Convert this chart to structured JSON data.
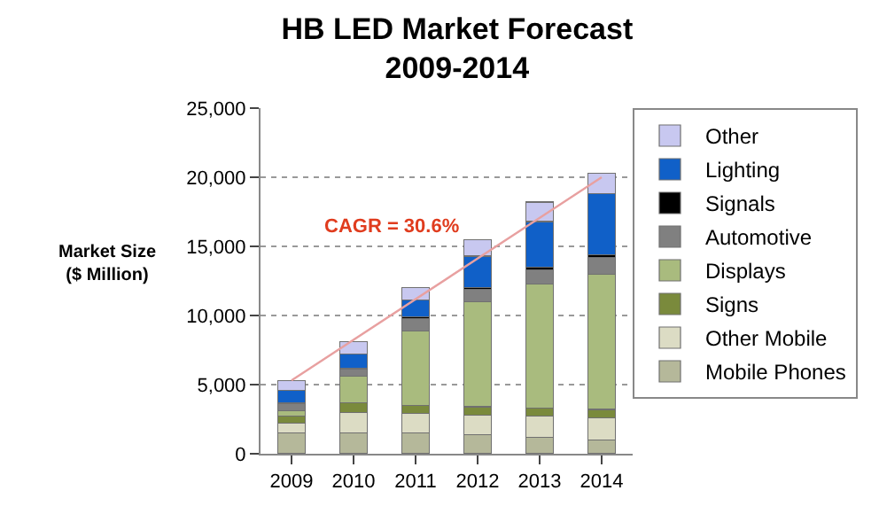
{
  "chart_data": {
    "type": "bar",
    "stacked": true,
    "title": "HB LED Market Forecast\n2009-2014",
    "ylabel": "Market Size\n($ Million)",
    "categories": [
      "2009",
      "2010",
      "2011",
      "2012",
      "2013",
      "2014"
    ],
    "series": [
      {
        "name": "Mobile Phones",
        "color": "#b5b89a",
        "values": [
          1500,
          1500,
          1500,
          1400,
          1200,
          1000
        ]
      },
      {
        "name": "Other Mobile",
        "color": "#dcdcc4",
        "values": [
          700,
          1500,
          1400,
          1400,
          1500,
          1600
        ]
      },
      {
        "name": "Signs",
        "color": "#7a8a3c",
        "values": [
          500,
          700,
          600,
          600,
          600,
          600
        ]
      },
      {
        "name": "Displays",
        "color": "#a9bb7e",
        "values": [
          400,
          1900,
          5400,
          7600,
          9000,
          9800
        ]
      },
      {
        "name": "Automotive",
        "color": "#808080",
        "values": [
          500,
          500,
          900,
          900,
          1000,
          1200
        ]
      },
      {
        "name": "Signals",
        "color": "#000000",
        "values": [
          100,
          100,
          100,
          100,
          200,
          200
        ]
      },
      {
        "name": "Lighting",
        "color": "#1060c8",
        "values": [
          900,
          1000,
          1200,
          2300,
          3300,
          4400
        ]
      },
      {
        "name": "Other",
        "color": "#c8c8f0",
        "values": [
          700,
          900,
          900,
          1200,
          1400,
          1500
        ]
      },
      {
        "type": "line",
        "color": "#e8a0a0",
        "values": [
          5300,
          null,
          null,
          null,
          null,
          20000
        ]
      }
    ],
    "annotations": [
      "CAGR = 30.6%"
    ],
    "ylim": [
      0,
      25000
    ],
    "yticks": [
      0,
      {
        "value": 5000,
        "label": "5,000"
      },
      {
        "value": 10000,
        "label": "10,000"
      },
      {
        "value": 15000,
        "label": "15,000"
      },
      {
        "value": 20000,
        "label": "20,000"
      },
      {
        "value": 25000,
        "label": "25,000"
      }
    ],
    "grid": "y",
    "legend": "right"
  }
}
